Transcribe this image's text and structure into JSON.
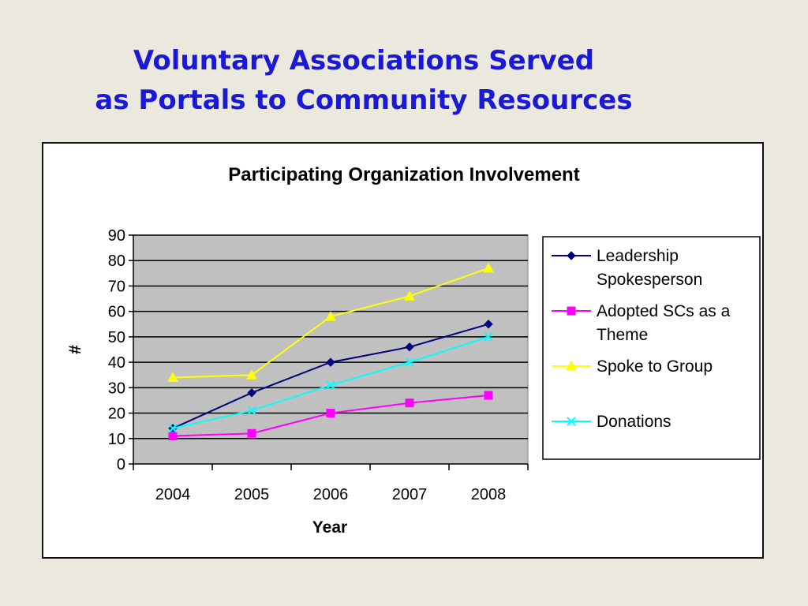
{
  "slide": {
    "title_line1": "Voluntary Associations Served",
    "title_line2": "as Portals to Community Resources"
  },
  "chart_data": {
    "type": "line",
    "title": "Participating Organization Involvement",
    "xlabel": "Year",
    "ylabel": "#",
    "categories": [
      "2004",
      "2005",
      "2006",
      "2007",
      "2008"
    ],
    "ylim": [
      0,
      90
    ],
    "yticks": [
      0,
      10,
      20,
      30,
      40,
      50,
      60,
      70,
      80,
      90
    ],
    "grid": true,
    "plot_background": "#c0c0c0",
    "legend_position": "right",
    "series": [
      {
        "name": "Leadership Spokesperson",
        "legend_lines": [
          "Leadership",
          "Spokesperson"
        ],
        "values": [
          14,
          28,
          40,
          46,
          55
        ],
        "color": "#000080",
        "marker": "diamond"
      },
      {
        "name": "Adopted SCs as a Theme",
        "legend_lines": [
          "Adopted SCs as a",
          "Theme"
        ],
        "values": [
          11,
          12,
          20,
          24,
          27
        ],
        "color": "#ff00ff",
        "marker": "square"
      },
      {
        "name": "Spoke to Group",
        "legend_lines": [
          "Spoke to Group"
        ],
        "values": [
          34,
          35,
          58,
          66,
          77
        ],
        "color": "#ffff00",
        "marker": "triangle"
      },
      {
        "name": "Donations",
        "legend_lines": [
          "Donations"
        ],
        "values": [
          14,
          21,
          31,
          40,
          50
        ],
        "color": "#00ffff",
        "marker": "x"
      }
    ]
  }
}
